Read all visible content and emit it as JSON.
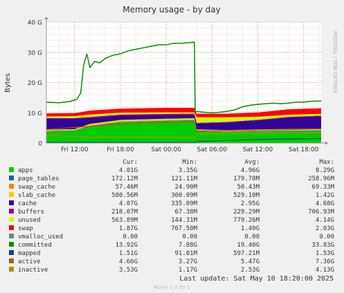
{
  "chart_data": {
    "type": "area",
    "title": "Memory usage - by day",
    "ylabel": "Bytes",
    "side_label": "RRDTOOL / TOBI OETIKER",
    "ylim": [
      0,
      40
    ],
    "y_unit": "G",
    "y_ticks": [
      {
        "value": 0,
        "label": "0"
      },
      {
        "value": 10,
        "label": "10 G"
      },
      {
        "value": 20,
        "label": "20 G"
      },
      {
        "value": 30,
        "label": "30 G"
      },
      {
        "value": 40,
        "label": "40 G"
      }
    ],
    "x_ticks": [
      {
        "hour": 12,
        "label": "Fri 12:00"
      },
      {
        "hour": 18,
        "label": "Fri 18:00"
      },
      {
        "hour": 24,
        "label": "Sat 00:00"
      },
      {
        "hour": 30,
        "label": "Sat 06:00"
      },
      {
        "hour": 36,
        "label": "Sat 12:00"
      },
      {
        "hour": 42,
        "label": "Sat 18:00"
      }
    ],
    "xlim_hours": [
      8.3,
      44.3
    ],
    "grid": true,
    "legend_header": {
      "cur": "Cur:",
      "min": "Min:",
      "avg": "Avg:",
      "max": "Max:"
    },
    "series": [
      {
        "name": "apps",
        "color": "#00cc00",
        "cur": "4.01G",
        "min": "3.35G",
        "avg": "4.96G",
        "max": "8.29G"
      },
      {
        "name": "page_tables",
        "color": "#0066b3",
        "cur": "172.12M",
        "min": "121.11M",
        "avg": "179.78M",
        "max": "258.96M"
      },
      {
        "name": "swap_cache",
        "color": "#ff8000",
        "cur": "57.46M",
        "min": "24.90M",
        "avg": "50.43M",
        "max": "69.33M"
      },
      {
        "name": "slab_cache",
        "color": "#ffcc00",
        "cur": "580.56M",
        "min": "300.09M",
        "avg": "529.10M",
        "max": "1.42G"
      },
      {
        "name": "cache",
        "color": "#330099",
        "cur": "4.07G",
        "min": "335.09M",
        "avg": "2.95G",
        "max": "4.68G"
      },
      {
        "name": "buffers",
        "color": "#990099",
        "cur": "218.07M",
        "min": "67.38M",
        "avg": "229.29M",
        "max": "706.93M"
      },
      {
        "name": "unused",
        "color": "#ccff00",
        "cur": "563.89M",
        "min": "144.31M",
        "avg": "779.26M",
        "max": "4.14G"
      },
      {
        "name": "swap",
        "color": "#ff0000",
        "cur": "1.87G",
        "min": "767.50M",
        "avg": "1.40G",
        "max": "2.03G"
      },
      {
        "name": "vmalloc_used",
        "color": "#808080",
        "cur": "0.00",
        "min": "0.00",
        "avg": "0.00",
        "max": "0.00"
      },
      {
        "name": "committed",
        "color": "#008f00",
        "cur": "13.92G",
        "min": "7.88G",
        "avg": "19.40G",
        "max": "33.83G"
      },
      {
        "name": "mapped",
        "color": "#00487d",
        "cur": "1.51G",
        "min": "91.01M",
        "avg": "597.21M",
        "max": "1.53G"
      },
      {
        "name": "active",
        "color": "#b35a00",
        "cur": "4.66G",
        "min": "3.27G",
        "avg": "5.47G",
        "max": "7.36G"
      },
      {
        "name": "inactive",
        "color": "#b38f00",
        "cur": "3.53G",
        "min": "1.17G",
        "avg": "2.53G",
        "max": "4.13G"
      }
    ],
    "committed_points": [
      [
        8.3,
        13.5
      ],
      [
        10.0,
        13.3
      ],
      [
        11.5,
        13.8
      ],
      [
        12.3,
        14.5
      ],
      [
        12.8,
        16.5
      ],
      [
        13.2,
        26.0
      ],
      [
        13.6,
        29.5
      ],
      [
        14.0,
        25.0
      ],
      [
        14.6,
        27.0
      ],
      [
        15.3,
        26.5
      ],
      [
        16.0,
        28.0
      ],
      [
        17.0,
        29.0
      ],
      [
        18.0,
        29.5
      ],
      [
        19.0,
        30.5
      ],
      [
        20.0,
        31.0
      ],
      [
        21.0,
        31.5
      ],
      [
        22.0,
        32.0
      ],
      [
        23.0,
        32.5
      ],
      [
        24.0,
        32.5
      ],
      [
        25.0,
        33.0
      ],
      [
        26.0,
        33.0
      ],
      [
        27.0,
        33.2
      ],
      [
        27.7,
        33.4
      ],
      [
        27.8,
        10.5
      ],
      [
        29.0,
        10.2
      ],
      [
        30.0,
        10.0
      ],
      [
        31.0,
        10.2
      ],
      [
        32.0,
        10.5
      ],
      [
        33.0,
        11.0
      ],
      [
        34.0,
        12.0
      ],
      [
        35.0,
        12.5
      ],
      [
        36.0,
        12.8
      ],
      [
        37.0,
        13.0
      ],
      [
        38.0,
        13.2
      ],
      [
        39.0,
        13.0
      ],
      [
        40.0,
        13.2
      ],
      [
        41.0,
        13.5
      ],
      [
        42.0,
        13.5
      ],
      [
        43.0,
        13.8
      ],
      [
        44.3,
        13.9
      ]
    ],
    "stack_points": [
      {
        "hour": 8.3,
        "apps": 3.8,
        "page_tables": 0.15,
        "swap_cache": 0.05,
        "slab_cache": 0.4,
        "cache": 3.7,
        "buffers": 0.2,
        "unused": 0.5,
        "swap": 1.0
      },
      {
        "hour": 12.0,
        "apps": 4.0,
        "page_tables": 0.15,
        "swap_cache": 0.05,
        "slab_cache": 0.4,
        "cache": 3.5,
        "buffers": 0.2,
        "unused": 0.6,
        "swap": 1.0
      },
      {
        "hour": 14.0,
        "apps": 5.5,
        "page_tables": 0.2,
        "swap_cache": 0.05,
        "slab_cache": 0.6,
        "cache": 2.0,
        "buffers": 0.3,
        "unused": 0.8,
        "swap": 1.3
      },
      {
        "hour": 18.0,
        "apps": 6.8,
        "page_tables": 0.2,
        "swap_cache": 0.05,
        "slab_cache": 0.6,
        "cache": 1.5,
        "buffers": 0.3,
        "unused": 0.6,
        "swap": 1.3
      },
      {
        "hour": 24.0,
        "apps": 7.2,
        "page_tables": 0.2,
        "swap_cache": 0.05,
        "slab_cache": 0.6,
        "cache": 1.3,
        "buffers": 0.3,
        "unused": 0.5,
        "swap": 1.5
      },
      {
        "hour": 27.7,
        "apps": 7.4,
        "page_tables": 0.2,
        "swap_cache": 0.05,
        "slab_cache": 0.6,
        "cache": 1.2,
        "buffers": 0.3,
        "unused": 0.4,
        "swap": 1.5
      },
      {
        "hour": 28.0,
        "apps": 3.8,
        "page_tables": 0.15,
        "swap_cache": 0.05,
        "slab_cache": 0.5,
        "cache": 2.0,
        "buffers": 0.2,
        "unused": 1.8,
        "swap": 1.2
      },
      {
        "hour": 32.0,
        "apps": 3.6,
        "page_tables": 0.15,
        "swap_cache": 0.05,
        "slab_cache": 0.5,
        "cache": 2.5,
        "buffers": 0.2,
        "unused": 1.5,
        "swap": 1.2
      },
      {
        "hour": 36.0,
        "apps": 3.8,
        "page_tables": 0.15,
        "swap_cache": 0.05,
        "slab_cache": 0.5,
        "cache": 3.0,
        "buffers": 0.2,
        "unused": 1.0,
        "swap": 1.4
      },
      {
        "hour": 40.0,
        "apps": 3.9,
        "page_tables": 0.17,
        "swap_cache": 0.05,
        "slab_cache": 0.55,
        "cache": 3.8,
        "buffers": 0.2,
        "unused": 0.7,
        "swap": 1.8
      },
      {
        "hour": 44.3,
        "apps": 4.0,
        "page_tables": 0.17,
        "swap_cache": 0.06,
        "slab_cache": 0.58,
        "cache": 4.07,
        "buffers": 0.22,
        "unused": 0.56,
        "swap": 1.87
      }
    ],
    "active_points": [
      [
        8.3,
        4.5
      ],
      [
        14.0,
        5.5
      ],
      [
        20.0,
        6.5
      ],
      [
        27.7,
        7.0
      ],
      [
        28.0,
        4.0
      ],
      [
        36.0,
        4.2
      ],
      [
        44.3,
        4.66
      ]
    ],
    "inactive_points": [
      [
        8.3,
        2.5
      ],
      [
        14.0,
        2.0
      ],
      [
        24.0,
        1.8
      ],
      [
        27.7,
        1.6
      ],
      [
        28.0,
        3.0
      ],
      [
        36.0,
        3.3
      ],
      [
        44.3,
        3.53
      ]
    ],
    "mapped_points": [
      [
        8.3,
        0.2
      ],
      [
        27.7,
        0.15
      ],
      [
        28.0,
        0.5
      ],
      [
        36.0,
        1.2
      ],
      [
        44.3,
        1.51
      ]
    ]
  },
  "footer": {
    "last_update": "Last update:  Sat May 10 18:20:00 2025",
    "version": "Munin 2.0.33-1"
  }
}
